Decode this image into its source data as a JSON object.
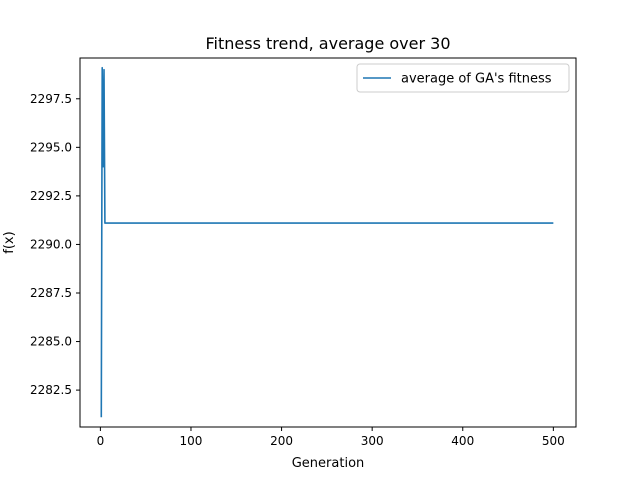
{
  "chart_data": {
    "type": "line",
    "title": "Fitness trend, average over 30",
    "xlabel": "Generation",
    "ylabel": "f(x)",
    "xlim": [
      -22.5,
      525
    ],
    "ylim": [
      2280.6,
      2299.6
    ],
    "x_ticks": [
      0,
      100,
      200,
      300,
      400,
      500
    ],
    "x_tick_labels": [
      "0",
      "100",
      "200",
      "300",
      "400",
      "500"
    ],
    "y_ticks": [
      2282.5,
      2285.0,
      2287.5,
      2290.0,
      2292.5,
      2295.0,
      2297.5
    ],
    "y_tick_labels": [
      "2282.5",
      "2285.0",
      "2287.5",
      "2290.0",
      "2292.5",
      "2295.0",
      "2297.5"
    ],
    "legend_position": "top-right",
    "grid": false,
    "series": [
      {
        "name": "average of GA's fitness",
        "color": "#1f77b4",
        "x": [
          1,
          2,
          3,
          4,
          5,
          6,
          500
        ],
        "y": [
          2281.1,
          2299.1,
          2294.0,
          2299.0,
          2291.1,
          2291.1,
          2291.1
        ]
      }
    ]
  }
}
